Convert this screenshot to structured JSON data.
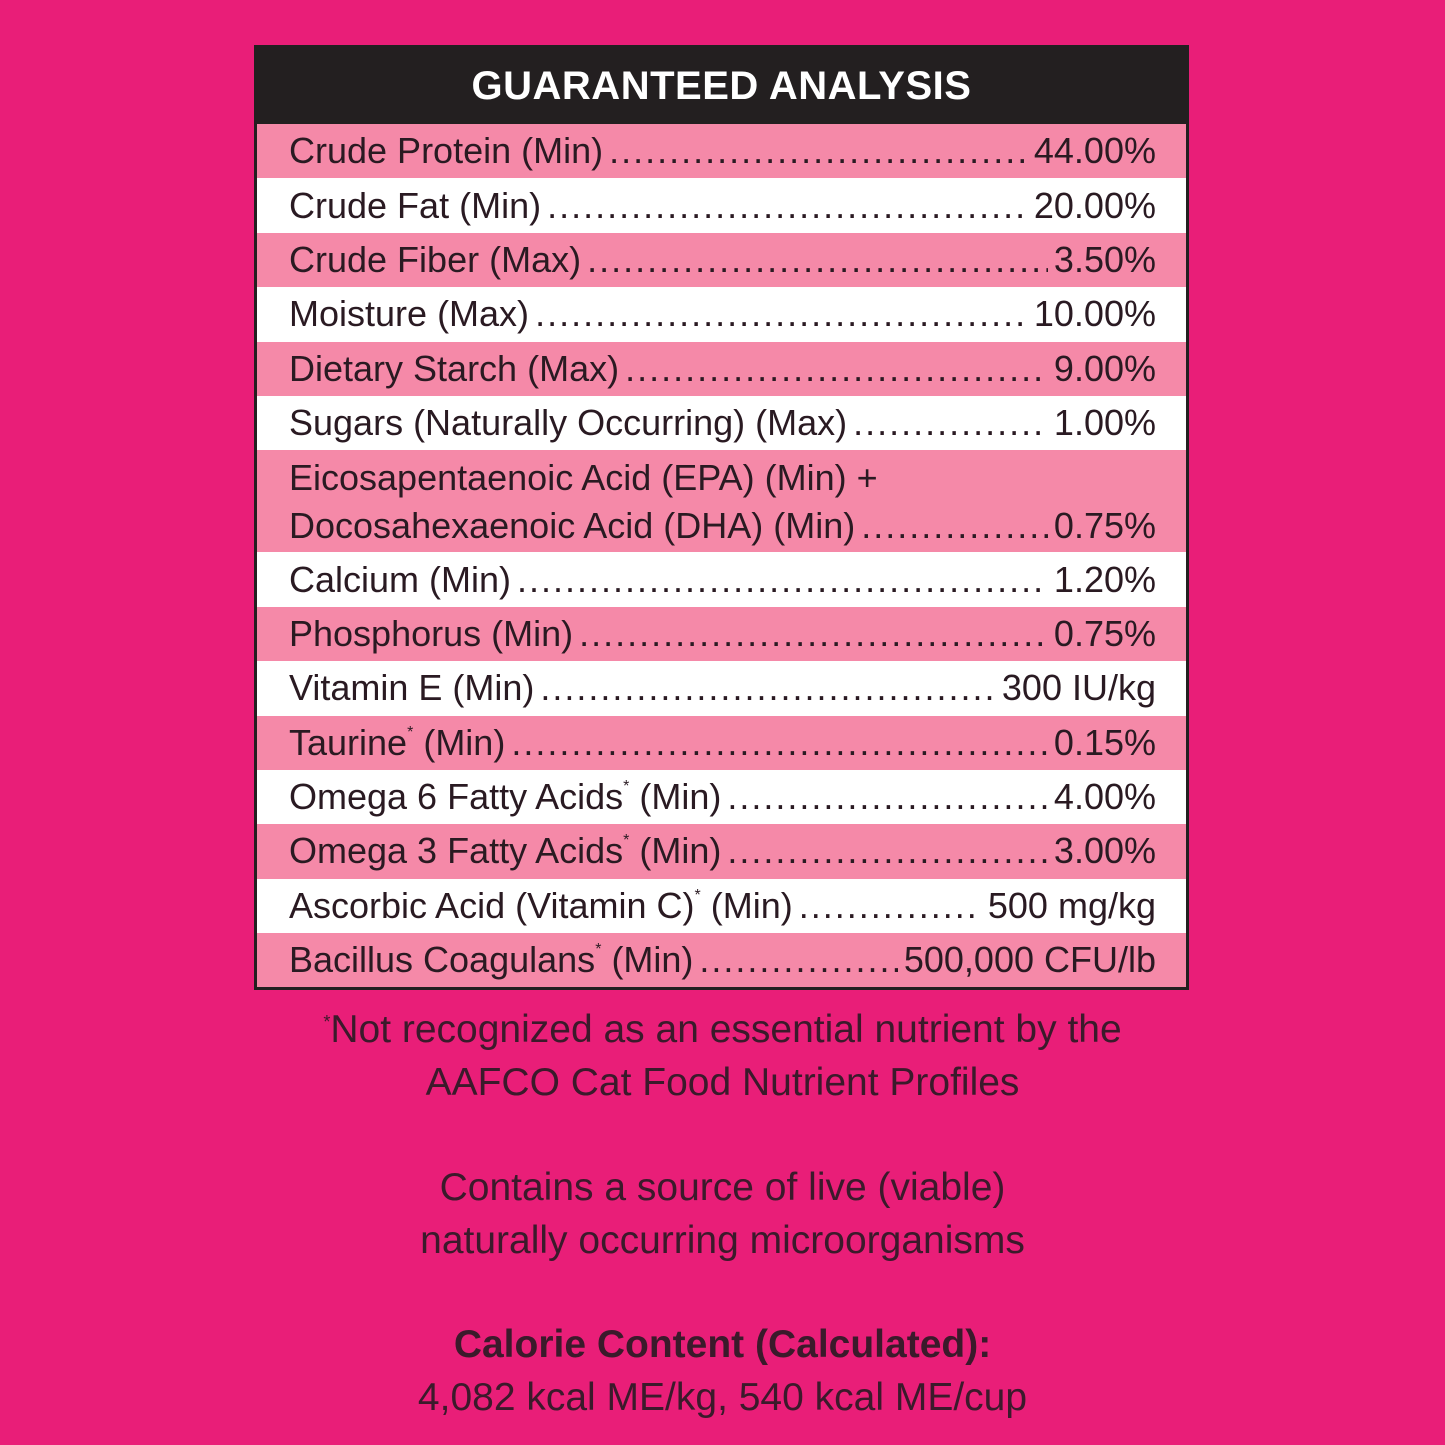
{
  "title": "GUARANTEED ANALYSIS",
  "colors": {
    "background": "#E91E78",
    "row_pink": "#F589A8",
    "row_white": "#FFFFFF",
    "header": "#231F20"
  },
  "rows": [
    {
      "label": "Crude Protein",
      "sup": "",
      "qualifier": "(Min)",
      "value": "44.00%"
    },
    {
      "label": "Crude Fat",
      "sup": "",
      "qualifier": "(Min)",
      "value": "20.00%"
    },
    {
      "label": "Crude Fiber",
      "sup": "",
      "qualifier": "(Max)",
      "value": "3.50%"
    },
    {
      "label": "Moisture",
      "sup": "",
      "qualifier": "(Max)",
      "value": "10.00%"
    },
    {
      "label": "Dietary Starch",
      "sup": "",
      "qualifier": "(Max)",
      "value": "9.00%"
    },
    {
      "label": "Sugars (Naturally Occurring)",
      "sup": "",
      "qualifier": "(Max)",
      "value": "1.00%"
    },
    {
      "line1": "Eicosapentaenoic Acid (EPA) (Min) +",
      "label": "Docosahexaenoic Acid (DHA)",
      "sup": "",
      "qualifier": "(Min)",
      "value": "0.75%"
    },
    {
      "label": "Calcium",
      "sup": "",
      "qualifier": "(Min)",
      "value": "1.20%"
    },
    {
      "label": "Phosphorus",
      "sup": "",
      "qualifier": "(Min)",
      "value": "0.75%"
    },
    {
      "label": "Vitamin E",
      "sup": "",
      "qualifier": "(Min)",
      "value": "300 IU/kg"
    },
    {
      "label": "Taurine",
      "sup": "*",
      "qualifier": "(Min)",
      "value": "0.15%"
    },
    {
      "label": "Omega 6 Fatty Acids",
      "sup": "*",
      "qualifier": "(Min)",
      "value": "4.00%"
    },
    {
      "label": "Omega 3 Fatty Acids",
      "sup": "*",
      "qualifier": "(Min)",
      "value": "3.00%"
    },
    {
      "label": "Ascorbic Acid (Vitamin C)",
      "sup": "*",
      "qualifier": "(Min)",
      "value": "500 mg/kg"
    },
    {
      "label": "Bacillus Coagulans",
      "sup": "*",
      "qualifier": "(Min)",
      "value": "500,000 CFU/lb"
    }
  ],
  "footnote": {
    "asterisk": "*",
    "line1": "Not recognized as an essential nutrient by the",
    "line2": "AAFCO Cat Food Nutrient Profiles"
  },
  "probiotic_note": {
    "line1": "Contains a source of live (viable)",
    "line2": "naturally occurring microorganisms"
  },
  "calorie": {
    "heading": "Calorie Content (Calculated):",
    "value": "4,082 kcal ME/kg, 540 kcal ME/cup"
  }
}
